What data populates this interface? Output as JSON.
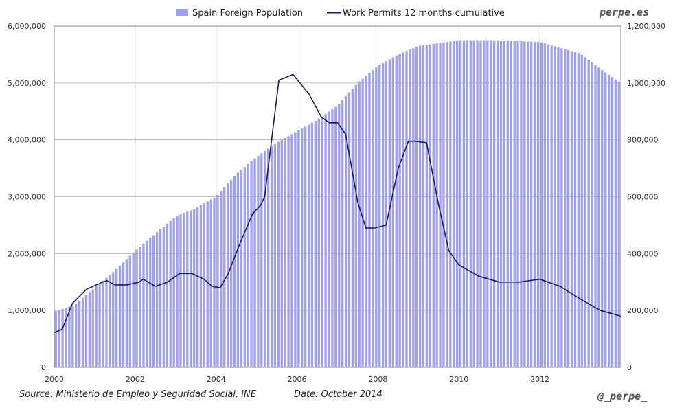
{
  "watermark_top": "perpe.es",
  "watermark_bottom": "@_perpe_",
  "source": "Source: Ministerio de Empleo y Seguridad Social, INE",
  "date": "Date: October 2014",
  "colors": {
    "bars": "#a0a0f0",
    "line": "#1a1a60",
    "grid": "#bdbdbd"
  },
  "chart_data": {
    "type": "bar+line",
    "legend": [
      "Spain Foreign Population",
      "Work Permits 12 months cumulative"
    ],
    "legend_position": "top",
    "grid": true,
    "x_range": [
      2000,
      2014
    ],
    "x_ticks": [
      "2000",
      "2002",
      "2004",
      "2006",
      "2008",
      "2010",
      "2012"
    ],
    "left_axis": {
      "range": [
        0,
        6000000
      ],
      "ticks": [
        "0",
        "1,000,000",
        "2,000,000",
        "3,000,000",
        "4,000,000",
        "5,000,000",
        "6,000,000"
      ]
    },
    "right_axis": {
      "range": [
        0,
        1200000
      ],
      "ticks": [
        "0",
        "200,000",
        "400,000",
        "600,000",
        "800,000",
        "1,000,000",
        "1,200,000"
      ]
    },
    "series": [
      {
        "name": "Spain Foreign Population",
        "type": "bar",
        "axis": "left",
        "points": [
          [
            2000.0,
            980000
          ],
          [
            2000.5,
            1100000
          ],
          [
            2001.0,
            1400000
          ],
          [
            2001.5,
            1700000
          ],
          [
            2002.0,
            2050000
          ],
          [
            2002.5,
            2350000
          ],
          [
            2003.0,
            2650000
          ],
          [
            2003.5,
            2800000
          ],
          [
            2004.0,
            3000000
          ],
          [
            2004.5,
            3400000
          ],
          [
            2005.0,
            3700000
          ],
          [
            2005.5,
            3950000
          ],
          [
            2006.0,
            4150000
          ],
          [
            2006.5,
            4350000
          ],
          [
            2007.0,
            4600000
          ],
          [
            2007.5,
            5000000
          ],
          [
            2008.0,
            5300000
          ],
          [
            2008.5,
            5500000
          ],
          [
            2009.0,
            5650000
          ],
          [
            2009.5,
            5700000
          ],
          [
            2010.0,
            5750000
          ],
          [
            2011.0,
            5750000
          ],
          [
            2012.0,
            5720000
          ],
          [
            2012.5,
            5620000
          ],
          [
            2013.0,
            5520000
          ],
          [
            2013.5,
            5250000
          ],
          [
            2014.0,
            5000000
          ]
        ]
      },
      {
        "name": "Work Permits 12 months cumulative",
        "type": "line",
        "axis": "right",
        "points": [
          [
            2000.0,
            122000
          ],
          [
            2000.2,
            135000
          ],
          [
            2000.45,
            225000
          ],
          [
            2000.8,
            275000
          ],
          [
            2001.2,
            300000
          ],
          [
            2001.3,
            305000
          ],
          [
            2001.5,
            290000
          ],
          [
            2001.8,
            290000
          ],
          [
            2002.1,
            300000
          ],
          [
            2002.2,
            310000
          ],
          [
            2002.5,
            285000
          ],
          [
            2002.8,
            300000
          ],
          [
            2003.1,
            330000
          ],
          [
            2003.4,
            330000
          ],
          [
            2003.7,
            310000
          ],
          [
            2003.9,
            285000
          ],
          [
            2004.1,
            280000
          ],
          [
            2004.3,
            330000
          ],
          [
            2004.6,
            440000
          ],
          [
            2004.9,
            540000
          ],
          [
            2005.1,
            570000
          ],
          [
            2005.2,
            600000
          ],
          [
            2005.55,
            1010000
          ],
          [
            2005.9,
            1030000
          ],
          [
            2006.3,
            960000
          ],
          [
            2006.6,
            880000
          ],
          [
            2006.8,
            860000
          ],
          [
            2007.0,
            860000
          ],
          [
            2007.2,
            820000
          ],
          [
            2007.5,
            580000
          ],
          [
            2007.7,
            490000
          ],
          [
            2007.9,
            490000
          ],
          [
            2008.2,
            500000
          ],
          [
            2008.5,
            700000
          ],
          [
            2008.75,
            795000
          ],
          [
            2008.9,
            795000
          ],
          [
            2009.2,
            790000
          ],
          [
            2009.5,
            570000
          ],
          [
            2009.75,
            410000
          ],
          [
            2010.0,
            360000
          ],
          [
            2010.5,
            320000
          ],
          [
            2011.0,
            300000
          ],
          [
            2011.5,
            300000
          ],
          [
            2011.75,
            305000
          ],
          [
            2012.0,
            310000
          ],
          [
            2012.5,
            285000
          ],
          [
            2013.0,
            240000
          ],
          [
            2013.5,
            200000
          ],
          [
            2014.0,
            180000
          ]
        ]
      }
    ]
  }
}
